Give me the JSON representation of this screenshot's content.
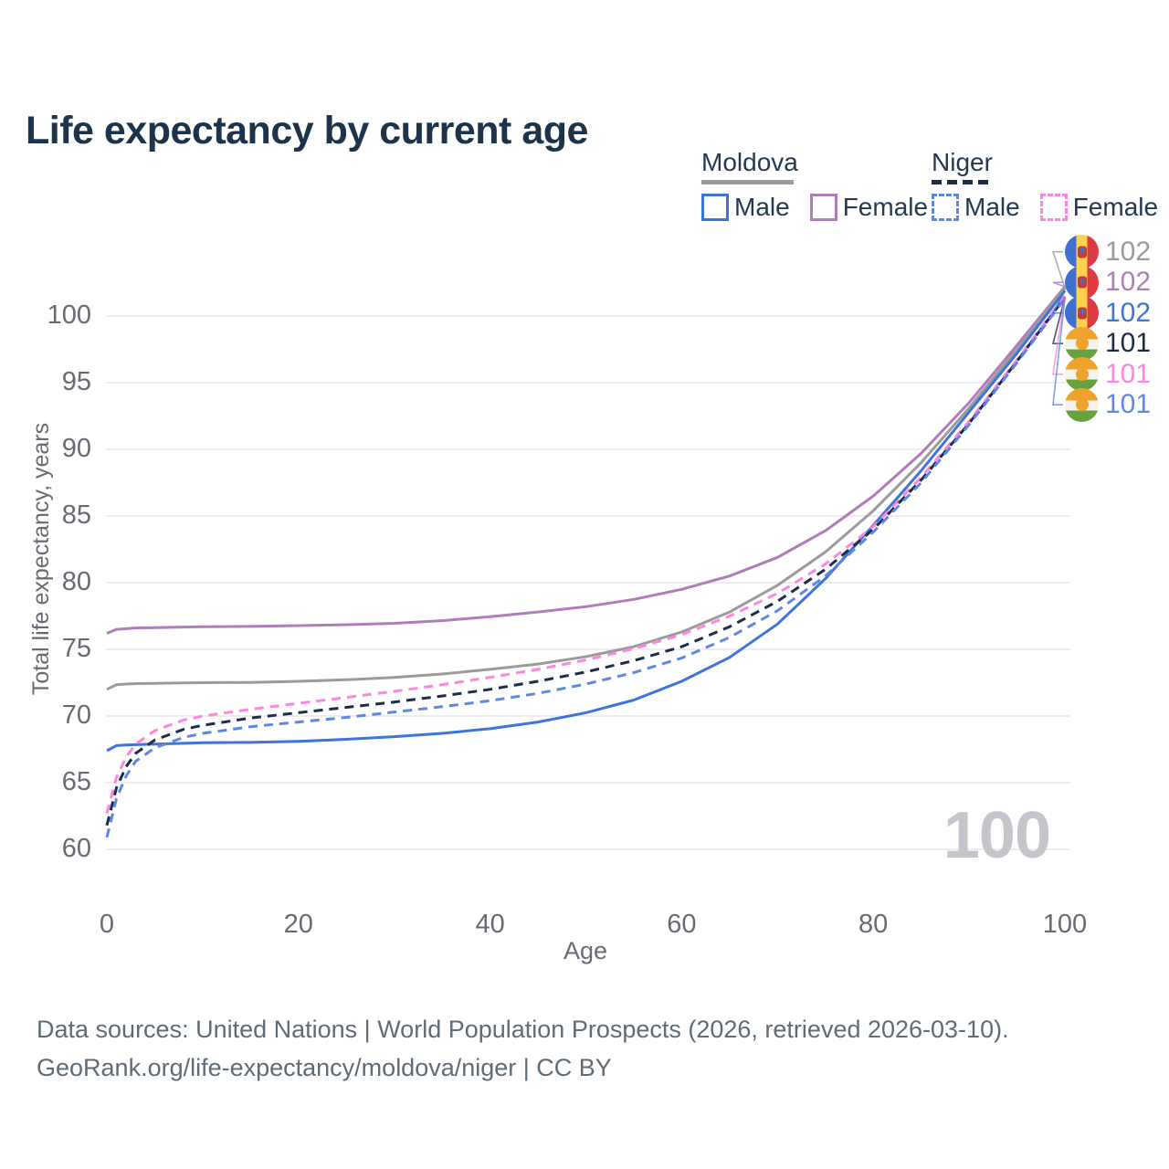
{
  "title": "Life expectancy by current age",
  "legend": {
    "moldova": {
      "title": "Moldova",
      "male": "Male",
      "female": "Female"
    },
    "niger": {
      "title": "Niger",
      "male": "Male",
      "female": "Female"
    }
  },
  "watermark": "100",
  "end_labels": [
    {
      "value": "102",
      "series": "moldova_total",
      "flag": "moldova"
    },
    {
      "value": "102",
      "series": "moldova_female",
      "flag": "moldova"
    },
    {
      "value": "102",
      "series": "moldova_male",
      "flag": "moldova"
    },
    {
      "value": "101",
      "series": "niger_total",
      "flag": "niger"
    },
    {
      "value": "101",
      "series": "niger_female",
      "flag": "niger"
    },
    {
      "value": "101",
      "series": "niger_male",
      "flag": "niger"
    }
  ],
  "colors": {
    "moldova_male": "#3f74da",
    "moldova_female": "#b07cba",
    "moldova_total": "#9b9b9b",
    "niger_male": "#5d88e4",
    "niger_female": "#ff85de",
    "niger_total": "#1e2c4c",
    "title_text": "#1d3349",
    "legend_text": "#253951",
    "axis_text": "#6a6a74",
    "grid": "#ececf1",
    "watermark": "#c5c5cb",
    "footer_text": "#5f6b75"
  },
  "chart_data": {
    "type": "line",
    "title": "Life expectancy by current age",
    "xlabel": "Age",
    "ylabel": "Total life expectancy, years",
    "xlim": [
      0,
      100
    ],
    "ylim": [
      60,
      100
    ],
    "xticks": [
      0,
      20,
      40,
      60,
      80,
      100
    ],
    "yticks": [
      60,
      65,
      70,
      75,
      80,
      85,
      90,
      95,
      100
    ],
    "grid": "horizontal",
    "legend_position": "top-right",
    "x": [
      0,
      1,
      2,
      3,
      5,
      8,
      10,
      15,
      20,
      25,
      30,
      35,
      40,
      45,
      50,
      55,
      60,
      65,
      70,
      75,
      80,
      85,
      90,
      95,
      100
    ],
    "series": [
      {
        "name": "Moldova Female",
        "key": "moldova_female",
        "style": "solid",
        "values": [
          76.2,
          76.5,
          76.55,
          76.6,
          76.63,
          76.67,
          76.7,
          76.72,
          76.78,
          76.85,
          76.95,
          77.15,
          77.45,
          77.8,
          78.2,
          78.75,
          79.5,
          80.5,
          81.9,
          83.9,
          86.5,
          89.7,
          93.5,
          97.8,
          102.2
        ]
      },
      {
        "name": "Moldova Total",
        "key": "moldova_total",
        "style": "solid",
        "values": [
          72.0,
          72.35,
          72.4,
          72.43,
          72.45,
          72.48,
          72.5,
          72.52,
          72.6,
          72.72,
          72.9,
          73.15,
          73.5,
          73.9,
          74.45,
          75.2,
          76.3,
          77.8,
          79.8,
          82.3,
          85.4,
          89.0,
          93.1,
          97.5,
          102.1
        ]
      },
      {
        "name": "Moldova Male",
        "key": "moldova_male",
        "style": "solid",
        "values": [
          67.4,
          67.78,
          67.82,
          67.85,
          67.9,
          67.95,
          68.0,
          68.02,
          68.1,
          68.25,
          68.45,
          68.7,
          69.05,
          69.55,
          70.25,
          71.2,
          72.6,
          74.4,
          76.9,
          80.3,
          84.3,
          88.4,
          92.8,
          97.2,
          101.9
        ]
      },
      {
        "name": "Niger Female",
        "key": "niger_female",
        "style": "dashed",
        "values": [
          62.7,
          65.4,
          66.9,
          67.9,
          68.9,
          69.7,
          70.0,
          70.5,
          70.95,
          71.4,
          71.85,
          72.35,
          72.9,
          73.5,
          74.2,
          75.05,
          76.1,
          77.5,
          79.2,
          81.4,
          84.2,
          87.9,
          92.1,
          96.7,
          101.5
        ]
      },
      {
        "name": "Niger Total",
        "key": "niger_total",
        "style": "dashed",
        "values": [
          61.8,
          64.6,
          66.2,
          67.2,
          68.2,
          69.0,
          69.3,
          69.85,
          70.25,
          70.65,
          71.05,
          71.5,
          72.0,
          72.6,
          73.3,
          74.15,
          75.2,
          76.7,
          78.6,
          81.0,
          84.0,
          87.7,
          91.95,
          96.6,
          101.4
        ]
      },
      {
        "name": "Niger Male",
        "key": "niger_male",
        "style": "dashed",
        "values": [
          60.9,
          63.8,
          65.5,
          66.6,
          67.6,
          68.4,
          68.7,
          69.2,
          69.55,
          69.9,
          70.3,
          70.7,
          71.15,
          71.7,
          72.4,
          73.25,
          74.35,
          75.9,
          77.9,
          80.5,
          83.8,
          87.5,
          91.85,
          96.5,
          101.3
        ]
      }
    ]
  },
  "footer": {
    "line1": "Data sources: United Nations | World Population Prospects (2026, retrieved 2026-03-10).",
    "line2": "GeoRank.org/life-expectancy/moldova/niger | CC BY"
  }
}
